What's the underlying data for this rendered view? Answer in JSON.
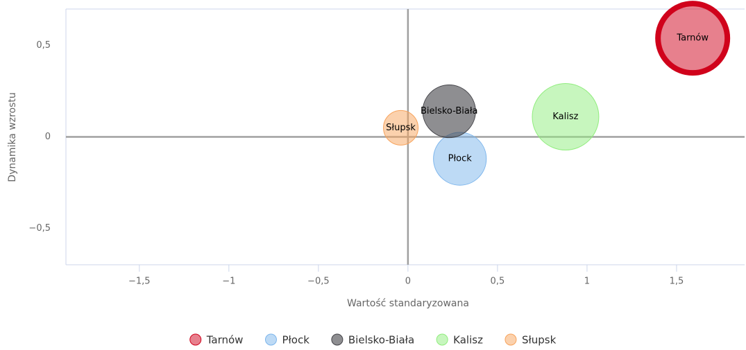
{
  "chart_data": {
    "type": "bubble",
    "xlabel": "Wartość standaryzowana",
    "ylabel": "Dynamika wzrostu",
    "xlim": [
      -1.91,
      1.88
    ],
    "ylim": [
      -0.7,
      0.7
    ],
    "xticks": [
      {
        "value": -1.5,
        "label": "−1,5"
      },
      {
        "value": -1,
        "label": "−1"
      },
      {
        "value": -0.5,
        "label": "−0,5"
      },
      0,
      {
        "value": 0.5,
        "label": "0,5"
      },
      1,
      {
        "value": 1.5,
        "label": "1,5"
      }
    ],
    "yticks": [
      {
        "value": -0.5,
        "label": "−0,5"
      },
      0,
      {
        "value": 0.5,
        "label": "0,5"
      }
    ],
    "legend": "bottom",
    "series": [
      {
        "name": "Tarnów",
        "color": "#d0021b",
        "selected": true,
        "x": [
          1.59
        ],
        "values": [
          0.54
        ],
        "sizes": [
          100
        ]
      },
      {
        "name": "Płock",
        "color": "#7cb5ec",
        "x": [
          0.29
        ],
        "values": [
          -0.12
        ],
        "sizes": [
          58
        ]
      },
      {
        "name": "Bielsko-Biała",
        "color": "#434348",
        "x": [
          0.23
        ],
        "values": [
          0.14
        ],
        "sizes": [
          58
        ]
      },
      {
        "name": "Kalisz",
        "color": "#90ed7d",
        "x": [
          0.88
        ],
        "values": [
          0.11
        ],
        "sizes": [
          92
        ]
      },
      {
        "name": "Słupsk",
        "color": "#f7a35c",
        "x": [
          -0.04
        ],
        "values": [
          0.05
        ],
        "sizes": [
          25
        ]
      }
    ]
  }
}
